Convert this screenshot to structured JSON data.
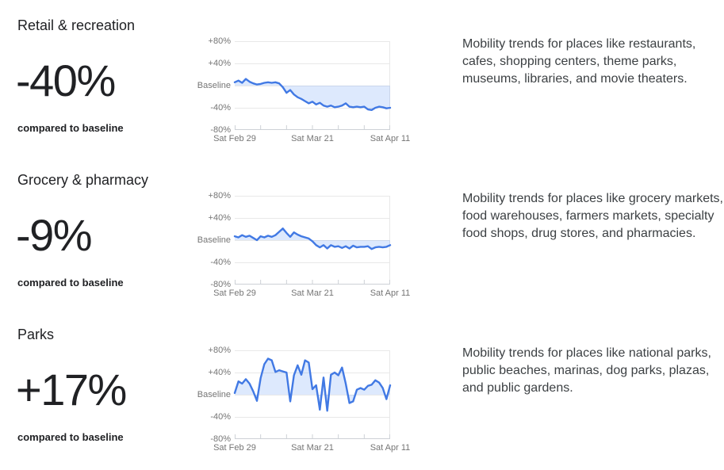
{
  "styles": {
    "text_primary": "#202124",
    "text_secondary": "#3c4043",
    "axis_label_color": "#757575",
    "grid_color": "#e8e8e8",
    "axis_color": "#cdd1d6",
    "line_color": "#4179e4",
    "fill_color": "rgba(66,133,244,0.18)"
  },
  "sections": [
    {
      "title": "Retail & recreation",
      "value": "-40%",
      "caption": "compared to baseline",
      "description": "Mobility trends for places like restaurants, cafes, shopping centers, theme parks, museums, libraries, and movie theaters."
    },
    {
      "title": "Grocery & pharmacy",
      "value": "-9%",
      "caption": "compared to baseline",
      "description": "Mobility trends for places like grocery markets, food warehouses, farmers markets, specialty food shops, drug stores, and pharmacies."
    },
    {
      "title": "Parks",
      "value": "+17%",
      "caption": "compared to baseline",
      "description": "Mobility trends for places like national parks, public beaches, marinas, dog parks, plazas, and public gardens."
    }
  ],
  "chart_data": [
    {
      "type": "area",
      "title": "Retail & recreation mobility vs baseline (%)",
      "ylim": [
        -80,
        80
      ],
      "baseline": 0,
      "y_tick_labels": [
        "+80%",
        "+40%",
        "Baseline",
        "-40%",
        "-80%"
      ],
      "x_tick_labels": [
        "Sat Feb 29",
        "Sat Mar 21",
        "Sat Apr 11"
      ],
      "x_tick_count": 7,
      "summary_change_pct": -40,
      "values": [
        6,
        9,
        5,
        12,
        7,
        4,
        2,
        3,
        5,
        6,
        5,
        6,
        4,
        -3,
        -13,
        -8,
        -16,
        -21,
        -24,
        -28,
        -32,
        -29,
        -34,
        -31,
        -36,
        -38,
        -36,
        -39,
        -38,
        -36,
        -32,
        -38,
        -39,
        -38,
        -39,
        -38,
        -43,
        -44,
        -40,
        -38,
        -39,
        -41,
        -40
      ]
    },
    {
      "type": "area",
      "title": "Grocery & pharmacy mobility vs baseline (%)",
      "ylim": [
        -80,
        80
      ],
      "baseline": 0,
      "y_tick_labels": [
        "+80%",
        "+40%",
        "Baseline",
        "-40%",
        "-80%"
      ],
      "x_tick_labels": [
        "Sat Feb 29",
        "Sat Mar 21",
        "Sat Apr 11"
      ],
      "x_tick_count": 7,
      "summary_change_pct": -9,
      "values": [
        7,
        5,
        9,
        6,
        8,
        4,
        0,
        7,
        5,
        8,
        6,
        9,
        15,
        21,
        13,
        6,
        14,
        10,
        7,
        5,
        3,
        -2,
        -9,
        -13,
        -9,
        -15,
        -9,
        -12,
        -11,
        -14,
        -11,
        -15,
        -10,
        -13,
        -12,
        -12,
        -11,
        -16,
        -13,
        -12,
        -13,
        -12,
        -9
      ]
    },
    {
      "type": "area",
      "title": "Parks mobility vs baseline (%)",
      "ylim": [
        -80,
        80
      ],
      "baseline": 0,
      "y_tick_labels": [
        "+80%",
        "+40%",
        "Baseline",
        "-40%",
        "-80%"
      ],
      "x_tick_labels": [
        "Sat Feb 29",
        "Sat Mar 21",
        "Sat Apr 11"
      ],
      "x_tick_count": 7,
      "summary_change_pct": 17,
      "values": [
        3,
        24,
        20,
        28,
        20,
        6,
        -11,
        30,
        55,
        65,
        62,
        41,
        44,
        42,
        40,
        -12,
        35,
        53,
        36,
        62,
        58,
        10,
        17,
        -27,
        31,
        -29,
        36,
        40,
        35,
        49,
        20,
        -15,
        -12,
        9,
        12,
        9,
        16,
        18,
        26,
        22,
        12,
        -8,
        17
      ]
    }
  ]
}
